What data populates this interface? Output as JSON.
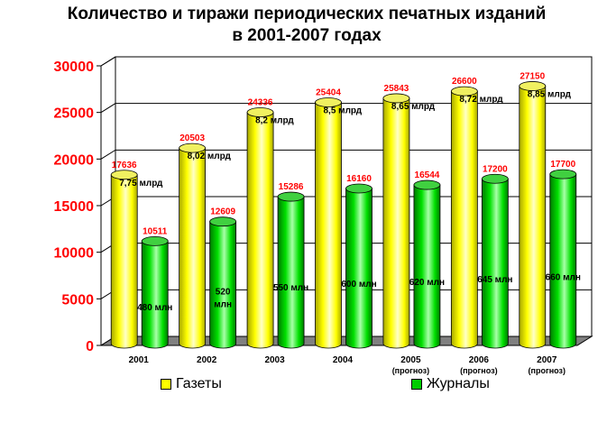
{
  "title_line1": "Количество и тиражи периодических печатных изданий",
  "title_line2": "в 2001-2007 годах",
  "chart_data": {
    "type": "bar",
    "title": "Количество и тиражи периодических печатных изданий в 2001-2007 годах",
    "categories": [
      "2001",
      "2002",
      "2003",
      "2004",
      "2005",
      "2006",
      "2007"
    ],
    "category_sublabels": [
      "",
      "",
      "",
      "",
      "(прогноз)",
      "(прогноз)",
      "(прогноз)"
    ],
    "ylim": [
      0,
      30000
    ],
    "yticks": [
      "0",
      "5000",
      "10000",
      "15000",
      "20000",
      "25000",
      "30000"
    ],
    "grid": true,
    "legend_position": "bottom",
    "series": [
      {
        "name": "Газеты",
        "color": "#ffff00",
        "values": [
          17636,
          20503,
          24336,
          25404,
          25843,
          26600,
          27150
        ],
        "value_labels": [
          "17636",
          "20503",
          "24336",
          "25404",
          "25843",
          "26600",
          "27150"
        ],
        "annotations": [
          "7,75 млрд",
          "8,02 млрд",
          "8,2 млрд",
          "8,5 млрд",
          "8,65 млрд",
          "8,72 млрд",
          "8,85 млрд"
        ]
      },
      {
        "name": "Журналы",
        "color": "#00cc00",
        "values": [
          10511,
          12609,
          15286,
          16160,
          16544,
          17200,
          17700
        ],
        "value_labels": [
          "10511",
          "12609",
          "15286",
          "16160",
          "16544",
          "17200",
          "17700"
        ],
        "annotations": [
          "480 млн",
          "520 млн",
          "550 млн",
          "600 млн",
          "620 млн",
          "645 млн",
          "660 млн"
        ]
      }
    ]
  }
}
